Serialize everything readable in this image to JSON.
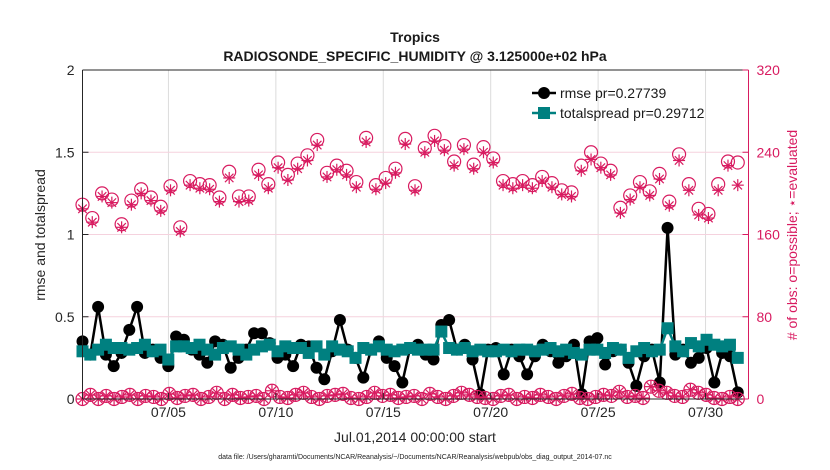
{
  "chart_data": {
    "type": "line",
    "title": "Tropics",
    "subtitle": "RADIOSONDE_SPECIFIC_HUMIDITY @ 3.125000e+02 hPa",
    "xlabel": "Jul.01,2014 00:00:00 start",
    "ylabel": "rmse and totalspread",
    "y2label": "# of obs: o=possible; ⋆=evaluated",
    "xlim_days": [
      0,
      31
    ],
    "ylim": [
      0,
      2
    ],
    "y2lim": [
      0,
      320
    ],
    "grid": true,
    "legend_position": "top-right",
    "x_ticks": [
      {
        "day": 4,
        "label": "07/05"
      },
      {
        "day": 9,
        "label": "07/10"
      },
      {
        "day": 14,
        "label": "07/15"
      },
      {
        "day": 19,
        "label": "07/20"
      },
      {
        "day": 24,
        "label": "07/25"
      },
      {
        "day": 29,
        "label": "07/30"
      }
    ],
    "y_ticks": [
      {
        "value": 0,
        "label": "0"
      },
      {
        "value": 0.5,
        "label": "0.5"
      },
      {
        "value": 1,
        "label": "1"
      },
      {
        "value": 1.5,
        "label": "1.5"
      },
      {
        "value": 2,
        "label": "2"
      }
    ],
    "y2_ticks": [
      {
        "value": 0,
        "label": "0"
      },
      {
        "value": 80,
        "label": "80"
      },
      {
        "value": 160,
        "label": "160"
      },
      {
        "value": 240,
        "label": "240"
      },
      {
        "value": 320,
        "label": "320"
      }
    ],
    "x_step_days": 0.5,
    "series": [
      {
        "name": "rmse pr=0.27739",
        "color": "#000000",
        "marker": "circle",
        "axis": "left",
        "values": [
          0.35,
          0.27,
          0.56,
          0.27,
          0.2,
          0.28,
          0.42,
          0.56,
          0.28,
          0.3,
          0.25,
          0.2,
          0.38,
          0.36,
          0.3,
          0.27,
          0.22,
          0.35,
          0.33,
          0.19,
          0.25,
          0.3,
          0.4,
          0.4,
          0.34,
          0.25,
          0.27,
          0.2,
          0.33,
          0.32,
          0.19,
          0.12,
          0.29,
          0.48,
          0.3,
          0.25,
          0.13,
          0.3,
          0.35,
          0.25,
          0.2,
          0.1,
          0.31,
          0.33,
          0.27,
          0.24,
          0.45,
          0.48,
          0.3,
          0.33,
          0.24,
          0.03,
          0.3,
          0.31,
          0.15,
          0.3,
          0.26,
          0.15,
          0.26,
          0.33,
          0.29,
          0.22,
          0.26,
          0.33,
          0.03,
          0.35,
          0.37,
          0.21,
          0.29,
          0.3,
          0.22,
          0.08,
          0.26,
          0.3,
          0.1,
          1.04,
          0.27,
          0.3,
          0.22,
          0.25,
          0.31,
          0.1,
          0.28,
          0.26,
          0.04
        ]
      },
      {
        "name": "totalspread pr=0.29712",
        "color": "#008080",
        "marker": "square",
        "axis": "left",
        "values": [
          0.29,
          0.27,
          0.3,
          0.33,
          0.31,
          0.31,
          0.3,
          0.31,
          0.33,
          0.29,
          0.3,
          0.24,
          0.32,
          0.32,
          0.31,
          0.33,
          0.3,
          0.27,
          0.31,
          0.32,
          0.3,
          0.27,
          0.3,
          0.32,
          0.33,
          0.29,
          0.32,
          0.31,
          0.31,
          0.28,
          0.32,
          0.27,
          0.32,
          0.3,
          0.29,
          0.25,
          0.31,
          0.3,
          0.32,
          0.3,
          0.29,
          0.3,
          0.31,
          0.3,
          0.3,
          0.3,
          0.41,
          0.31,
          0.3,
          0.31,
          0.29,
          0.3,
          0.29,
          0.29,
          0.3,
          0.29,
          0.3,
          0.3,
          0.29,
          0.3,
          0.31,
          0.29,
          0.3,
          0.28,
          0.27,
          0.3,
          0.3,
          0.28,
          0.31,
          0.3,
          0.25,
          0.29,
          0.31,
          0.29,
          0.3,
          0.43,
          0.32,
          0.29,
          0.34,
          0.32,
          0.36,
          0.33,
          0.32,
          0.33,
          0.25
        ]
      },
      {
        "name": "possible obs",
        "color": "#d81b60",
        "marker": "circle-open",
        "axis": "right",
        "values": [
          189,
          176,
          200,
          194,
          170,
          193,
          204,
          196,
          187,
          207,
          167,
          212,
          209,
          208,
          196,
          221,
          197,
          197,
          223,
          209,
          230,
          218,
          229,
          237,
          252,
          220,
          227,
          222,
          211,
          254,
          208,
          215,
          224,
          253,
          207,
          244,
          256,
          246,
          231,
          247,
          228,
          245,
          234,
          212,
          209,
          212,
          208,
          216,
          210,
          203,
          201,
          227,
          240,
          229,
          222,
          186,
          198,
          211,
          202,
          219,
          192,
          238,
          209,
          185,
          180,
          209,
          231,
          230
        ]
      },
      {
        "name": "evaluated obs",
        "color": "#d81b60",
        "marker": "star",
        "axis": "right",
        "values": [
          185,
          172,
          197,
          191,
          167,
          189,
          200,
          193,
          183,
          203,
          163,
          208,
          205,
          204,
          192,
          215,
          192,
          193,
          218,
          205,
          225,
          213,
          224,
          232,
          247,
          216,
          223,
          218,
          206,
          250,
          204,
          210,
          220,
          248,
          203,
          240,
          251,
          242,
          227,
          243,
          224,
          240,
          230,
          208,
          205,
          208,
          205,
          212,
          206,
          199,
          197,
          222,
          233,
          225,
          218,
          181,
          194,
          206,
          198,
          214,
          188,
          232,
          203,
          179,
          176,
          203,
          227,
          208
        ]
      },
      {
        "name": "possible obs (bottom)",
        "color": "#d81b60",
        "marker": "circle-open",
        "axis": "right",
        "values": [
          0,
          4,
          0,
          3,
          0,
          2,
          4,
          0,
          3,
          2,
          0,
          5,
          1,
          3,
          4,
          0,
          2,
          6,
          0,
          4,
          1,
          2,
          3,
          0,
          8,
          2,
          1,
          4,
          6,
          2,
          0,
          3,
          4,
          5,
          1,
          0,
          2,
          6,
          3,
          4,
          1,
          2,
          3,
          0,
          5,
          2,
          0,
          3,
          6,
          4,
          2,
          1,
          0,
          3,
          4,
          0,
          2,
          1,
          4,
          2,
          0,
          3,
          5,
          1,
          0,
          2,
          4,
          3,
          7,
          2,
          3,
          1,
          12,
          8,
          6,
          3,
          2,
          9,
          6,
          4,
          1,
          0,
          2,
          0
        ]
      }
    ]
  },
  "footer": "data file: /Users/gharamti/Documents/NCAR/Reanalysis/~/Documents/NCAR/Reanalysis/webpub/obs_diag_output_2014-07.nc"
}
